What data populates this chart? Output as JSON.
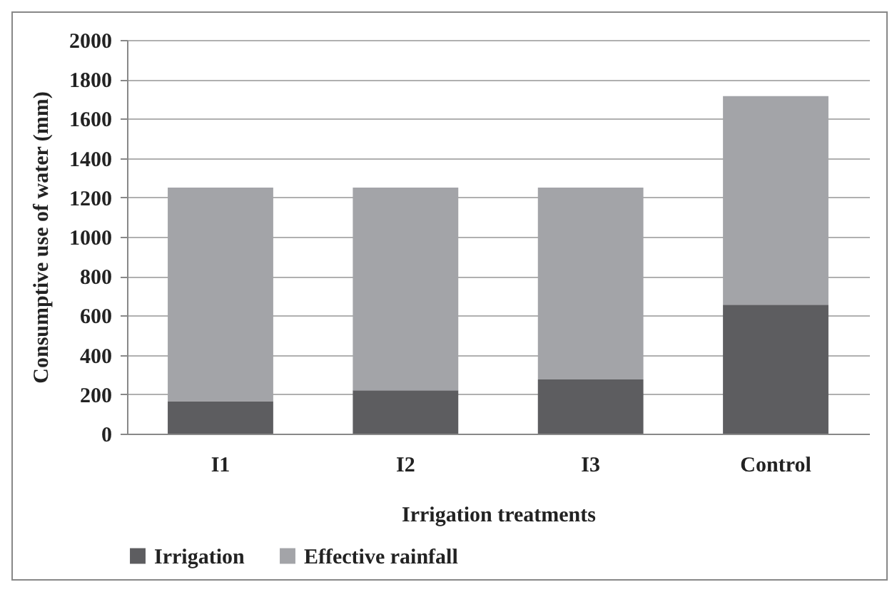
{
  "chart_data": {
    "type": "bar",
    "stacked": true,
    "xlabel": "Irrigation treatments",
    "ylabel": "Consumptive use of water (mm)",
    "categories": [
      "I1",
      "I2",
      "I3",
      "Control"
    ],
    "series": [
      {
        "name": "Irrigation",
        "color": "#5d5d60",
        "values": [
          165,
          220,
          275,
          655
        ]
      },
      {
        "name": "Effective rainfall",
        "color": "#a3a4a8",
        "values": [
          1085,
          1030,
          975,
          1060
        ]
      }
    ],
    "ylim": [
      0,
      2000
    ],
    "yticks": [
      0,
      200,
      400,
      600,
      800,
      1000,
      1200,
      1400,
      1600,
      1800,
      2000
    ],
    "grid": "y",
    "legend": "bottom"
  }
}
